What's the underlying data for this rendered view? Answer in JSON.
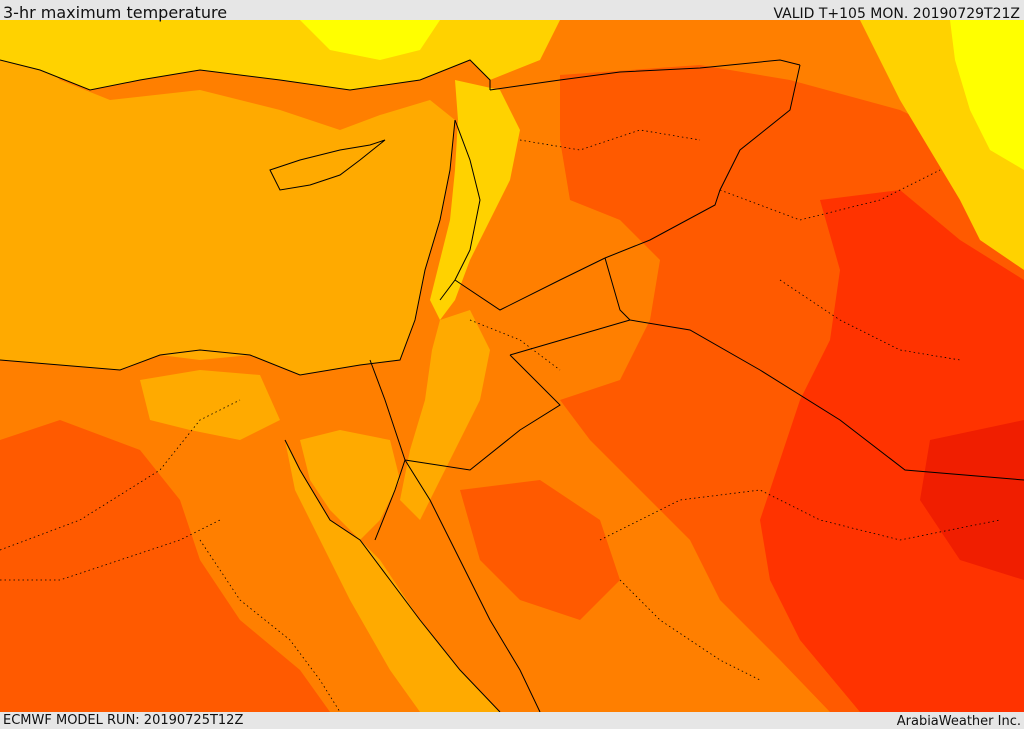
{
  "header": {
    "title": "3-hr maximum temperature",
    "valid": "VALID T+105 MON. 20190729T21Z"
  },
  "footer": {
    "model_run": "ECMWF MODEL RUN: 20190725T12Z",
    "credit": "ArabiaWeather Inc."
  },
  "palette": {
    "sea": "#ffaa00",
    "hot": "#ff7f00",
    "very_hot": "#ff5a00",
    "extreme": "#ff3300",
    "cool": "#ffd200",
    "cooler": "#ffff00",
    "borders": "#000000"
  }
}
